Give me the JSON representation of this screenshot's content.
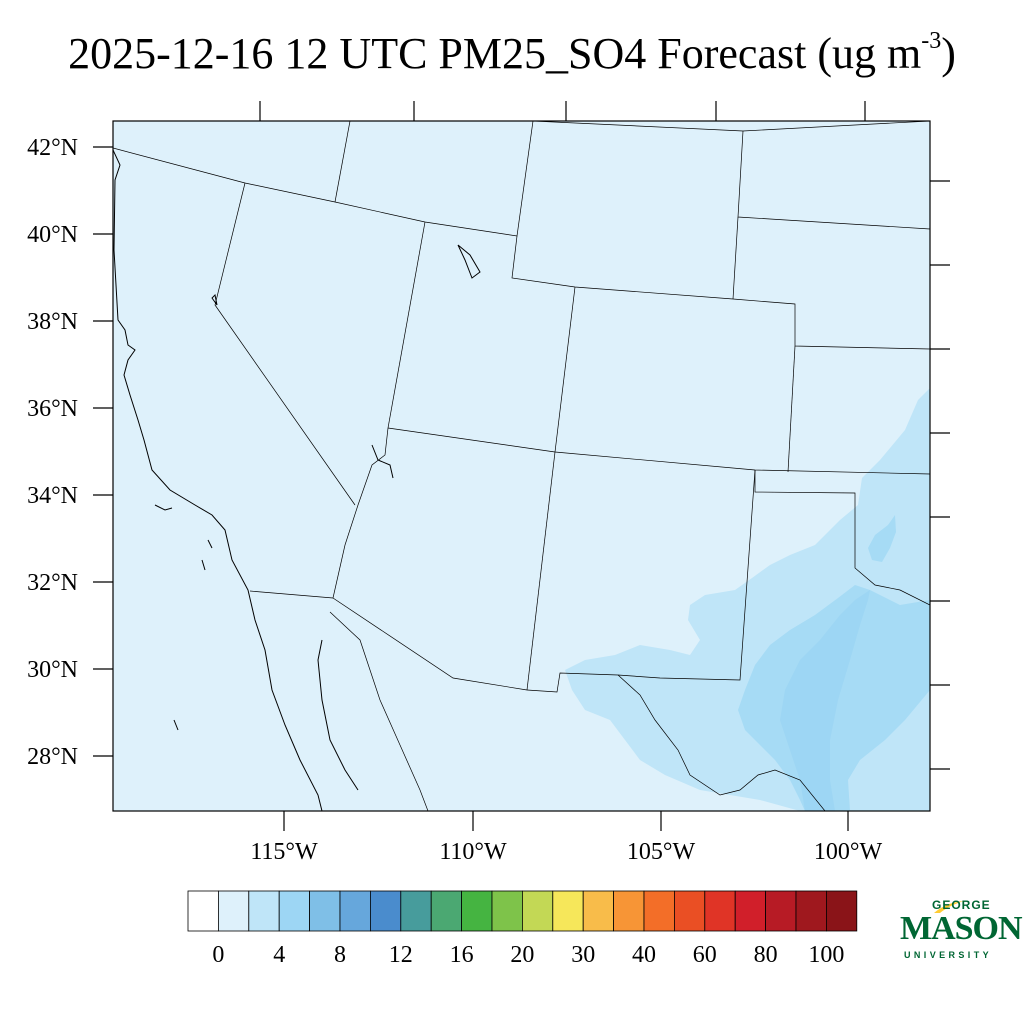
{
  "title": {
    "main": "2025-12-16 12 UTC PM25_SO4 Forecast (ug m",
    "exponent": "-3",
    "close": ")"
  },
  "map": {
    "lat_labels": [
      "42°N",
      "40°N",
      "38°N",
      "36°N",
      "34°N",
      "32°N",
      "30°N",
      "28°N"
    ],
    "lon_labels": [
      "115°W",
      "110°W",
      "105°W",
      "100°W"
    ],
    "background_color": "#def1fb",
    "land_color": "#def1fb"
  },
  "colorbar": {
    "colors": [
      "#ffffff",
      "#def1fb",
      "#bfe5f8",
      "#9dd6f4",
      "#7fbfe7",
      "#66a7dc",
      "#4a8ccd",
      "#479c9c",
      "#4ba872",
      "#45b441",
      "#7ec34a",
      "#c3d855",
      "#f6e75a",
      "#f8bc4a",
      "#f79536",
      "#f36e28",
      "#ea4f24",
      "#e03426",
      "#d11f2a",
      "#b71b25",
      "#9f181e",
      "#8a1418"
    ],
    "labels": [
      "0",
      "4",
      "8",
      "12",
      "16",
      "20",
      "30",
      "40",
      "60",
      "80",
      "100"
    ]
  },
  "logo": {
    "top_text": "GEORGE",
    "main_text": "MASON",
    "bottom_text": "UNIVERSITY",
    "color": "#006633",
    "accent_color": "#ffcc33"
  }
}
